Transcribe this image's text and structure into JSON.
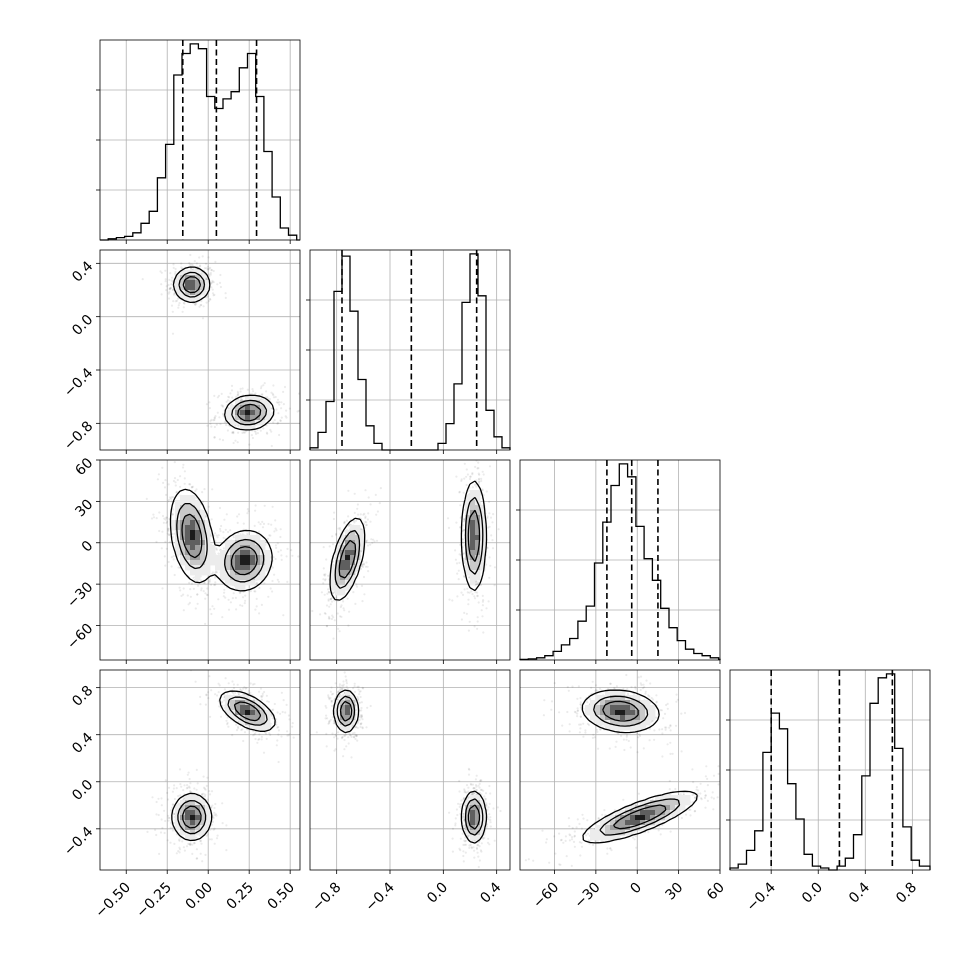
{
  "chart_data": {
    "type": "corner",
    "title": "",
    "parameters": [
      {
        "index": 0,
        "range": [
          -0.66,
          0.56
        ],
        "ticks": [
          -0.5,
          -0.25,
          0.0,
          0.25,
          0.5
        ],
        "tick_labels": [
          "−0.50",
          "−0.25",
          "0.00",
          "0.25",
          "0.50"
        ]
      },
      {
        "index": 1,
        "range": [
          -1.0,
          0.5
        ],
        "ticks": [
          -0.8,
          -0.4,
          0.0,
          0.4
        ],
        "tick_labels": [
          "−0.8",
          "−0.4",
          "0.0",
          "0.4"
        ]
      },
      {
        "index": 2,
        "range": [
          -85,
          60
        ],
        "ticks": [
          -60,
          -30,
          0,
          30,
          60
        ],
        "tick_labels": [
          "−60",
          "−30",
          "0",
          "30",
          "60"
        ]
      },
      {
        "index": 3,
        "range": [
          -0.75,
          0.95
        ],
        "ticks": [
          -0.4,
          0.0,
          0.4,
          0.8
        ],
        "tick_labels": [
          "−0.4",
          "0.0",
          "0.4",
          "0.8"
        ]
      }
    ],
    "histograms": [
      {
        "param": 0,
        "edges": [
          -0.66,
          -0.61,
          -0.56,
          -0.51,
          -0.46,
          -0.41,
          -0.36,
          -0.31,
          -0.26,
          -0.21,
          -0.16,
          -0.11,
          -0.06,
          -0.01,
          0.04,
          0.09,
          0.14,
          0.19,
          0.24,
          0.29,
          0.34,
          0.39,
          0.44,
          0.49,
          0.54,
          0.56
        ],
        "counts": [
          0.0,
          0.5,
          1,
          1.5,
          3,
          7,
          12,
          26,
          40,
          69,
          78,
          82,
          80,
          60,
          55,
          59,
          62,
          72,
          78,
          60,
          37,
          18,
          5,
          2,
          0
        ],
        "quantiles": [
          -0.155,
          0.05,
          0.295
        ]
      },
      {
        "param": 1,
        "edges": [
          -1.0,
          -0.94,
          -0.88,
          -0.82,
          -0.76,
          -0.7,
          -0.64,
          -0.58,
          -0.52,
          -0.46,
          -0.4,
          -0.34,
          -0.28,
          -0.22,
          -0.16,
          -0.1,
          -0.04,
          0.02,
          0.08,
          0.14,
          0.2,
          0.26,
          0.32,
          0.38,
          0.44,
          0.5
        ],
        "counts": [
          1,
          8,
          22,
          72,
          88,
          63,
          32,
          11,
          3,
          0,
          0,
          0,
          0,
          0,
          0,
          0,
          3,
          12,
          30,
          67,
          89,
          70,
          18,
          6,
          1
        ],
        "quantiles": [
          -0.76,
          -0.24,
          0.25
        ]
      },
      {
        "param": 2,
        "edges": [
          -85,
          -79,
          -73,
          -67,
          -61,
          -55,
          -49,
          -43,
          -37,
          -31,
          -25,
          -19,
          -13,
          -7,
          -1,
          5,
          11,
          17,
          23,
          29,
          35,
          41,
          47,
          53,
          59,
          60
        ],
        "counts": [
          0.3,
          0.5,
          1,
          2,
          4,
          7,
          10,
          18,
          25,
          45,
          64,
          81,
          91,
          85,
          62,
          47,
          37,
          24,
          15,
          9,
          5,
          3,
          2,
          1,
          0.3
        ],
        "quantiles": [
          -22,
          -4,
          15
        ]
      },
      {
        "param": 3,
        "edges": [
          -0.75,
          -0.68,
          -0.61,
          -0.54,
          -0.47,
          -0.4,
          -0.33,
          -0.26,
          -0.19,
          -0.12,
          -0.05,
          0.02,
          0.09,
          0.16,
          0.23,
          0.3,
          0.37,
          0.44,
          0.51,
          0.58,
          0.65,
          0.72,
          0.79,
          0.86,
          0.95
        ],
        "counts": [
          1,
          3,
          10,
          20,
          60,
          80,
          72,
          44,
          26,
          8,
          2,
          1,
          0,
          2,
          6,
          18,
          48,
          85,
          98,
          100,
          62,
          22,
          5,
          2
        ],
        "quantiles": [
          -0.4,
          0.18,
          0.63
        ]
      }
    ],
    "pairs": [
      {
        "x": 0,
        "y": 1,
        "modes": [
          {
            "mx": -0.1,
            "my": 0.24,
            "sx": 0.055,
            "sy": 0.065,
            "rho": 0.0,
            "w": 1.0
          },
          {
            "mx": 0.25,
            "my": -0.72,
            "sx": 0.075,
            "sy": 0.065,
            "rho": 0.1,
            "w": 1.0
          }
        ]
      },
      {
        "x": 0,
        "y": 2,
        "modes": [
          {
            "mx": -0.1,
            "my": 5,
            "sx": 0.065,
            "sy": 17,
            "rho": -0.3,
            "w": 1.0
          },
          {
            "mx": 0.22,
            "my": -13,
            "sx": 0.085,
            "sy": 11,
            "rho": 0.1,
            "w": 1.0
          }
        ]
      },
      {
        "x": 1,
        "y": 2,
        "modes": [
          {
            "mx": -0.72,
            "my": -12,
            "sx": 0.065,
            "sy": 15,
            "rho": 0.55,
            "w": 1.0
          },
          {
            "mx": 0.23,
            "my": 5,
            "sx": 0.045,
            "sy": 20,
            "rho": 0.0,
            "w": 1.0
          }
        ]
      },
      {
        "x": 0,
        "y": 3,
        "modes": [
          {
            "mx": 0.24,
            "my": 0.6,
            "sx": 0.085,
            "sy": 0.085,
            "rho": -0.55,
            "w": 1.0
          },
          {
            "mx": -0.1,
            "my": -0.3,
            "sx": 0.06,
            "sy": 0.1,
            "rho": 0.0,
            "w": 1.0
          }
        ]
      },
      {
        "x": 1,
        "y": 3,
        "modes": [
          {
            "mx": -0.73,
            "my": 0.6,
            "sx": 0.045,
            "sy": 0.09,
            "rho": 0.0,
            "w": 1.0
          },
          {
            "mx": 0.23,
            "my": -0.3,
            "sx": 0.045,
            "sy": 0.11,
            "rho": 0.0,
            "w": 1.0
          }
        ]
      },
      {
        "x": 2,
        "y": 3,
        "modes": [
          {
            "mx": -12,
            "my": 0.6,
            "sx": 14,
            "sy": 0.09,
            "rho": -0.15,
            "w": 1.0
          },
          {
            "mx": 2,
            "my": -0.3,
            "sx": 21,
            "sy": 0.11,
            "rho": 0.8,
            "w": 1.0
          }
        ]
      }
    ]
  }
}
